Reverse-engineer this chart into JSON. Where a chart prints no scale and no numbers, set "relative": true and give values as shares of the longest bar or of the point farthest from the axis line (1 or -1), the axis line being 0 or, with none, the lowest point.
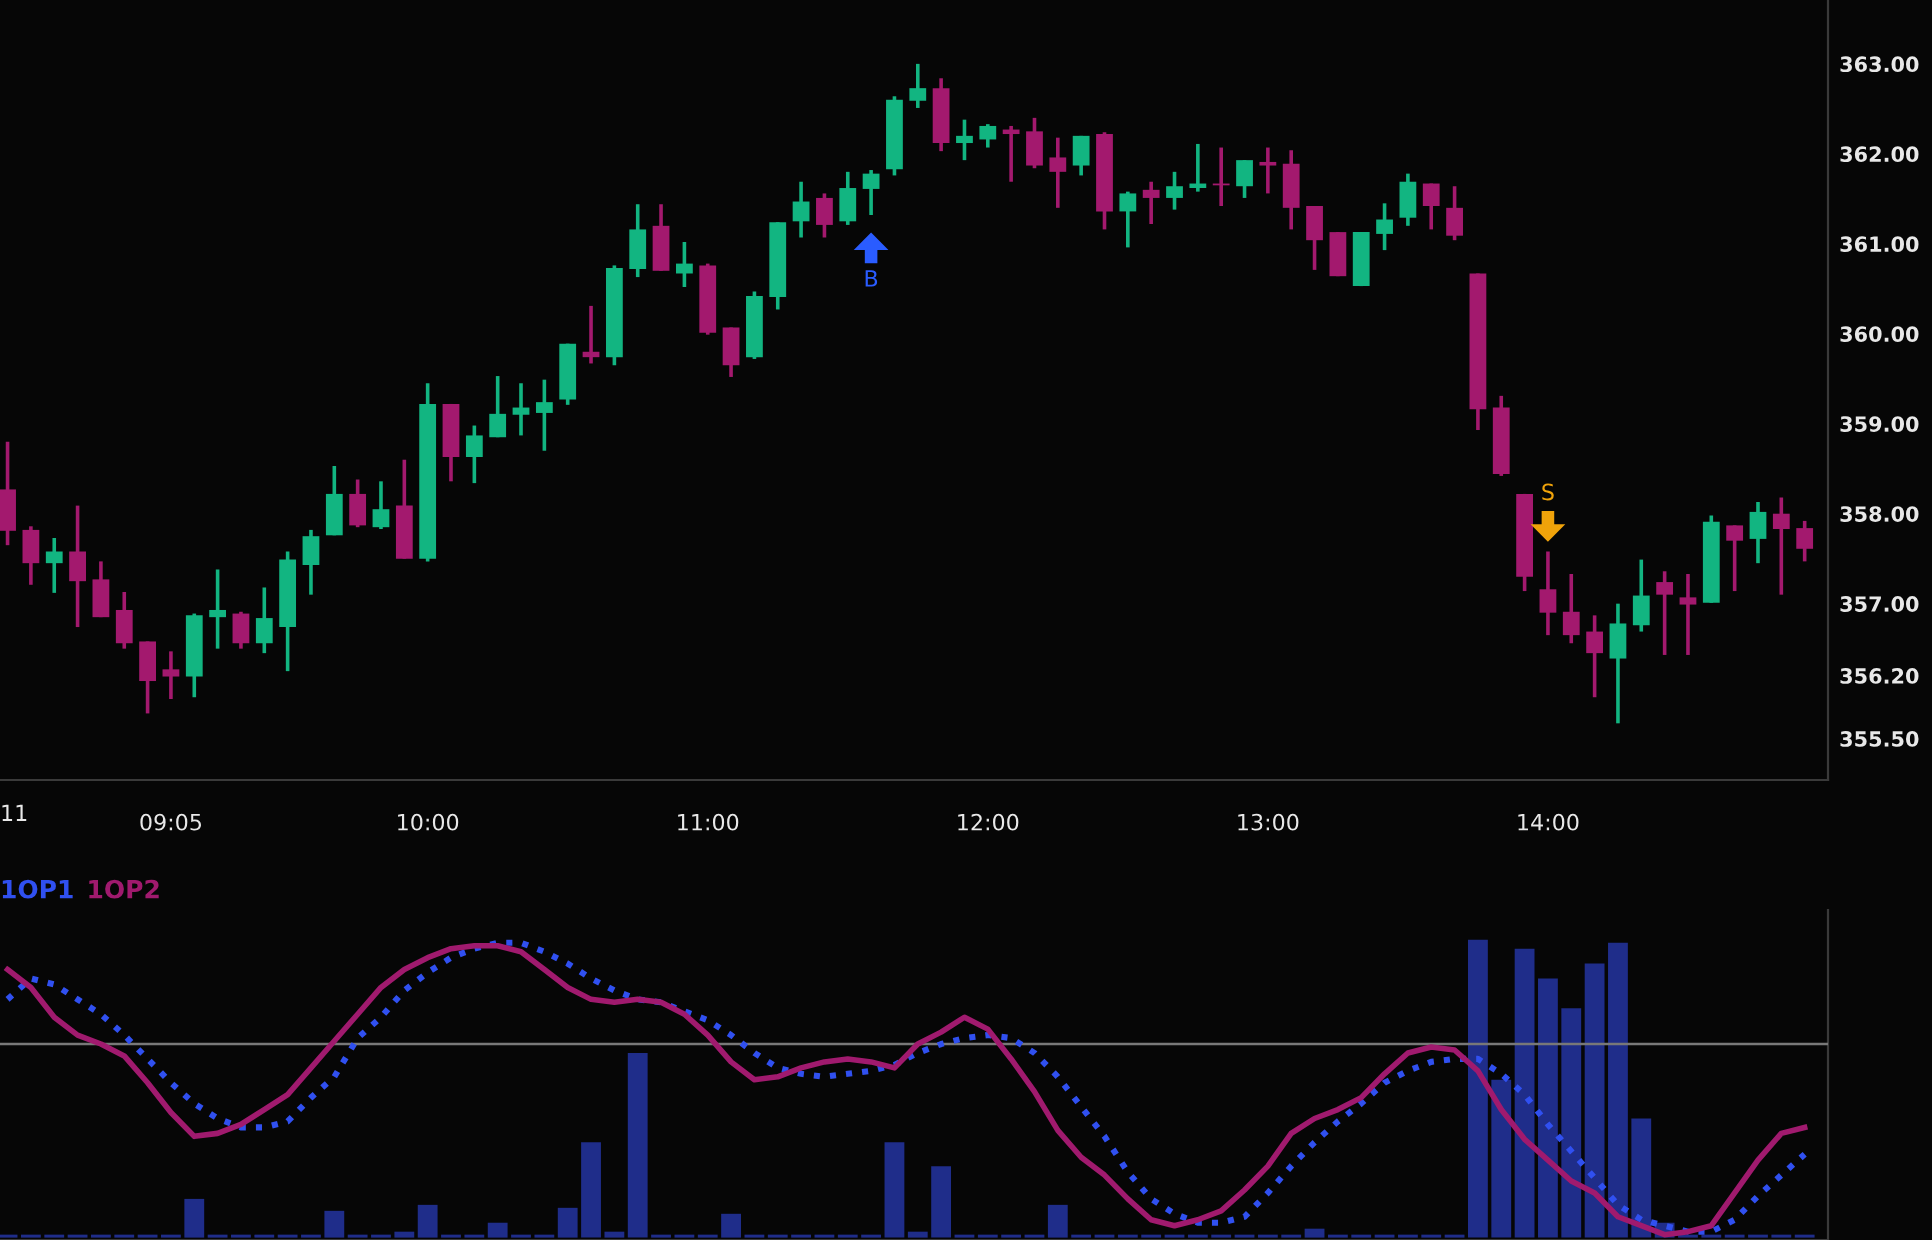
{
  "chart_data": [
    {
      "type": "candlestick",
      "x": [
        8.5,
        8.5833,
        8.6667,
        8.75,
        8.8333,
        8.9167,
        9.0,
        9.0833,
        9.1667,
        9.25,
        9.3333,
        9.4167,
        9.5,
        9.5833,
        9.6667,
        9.75,
        9.8333,
        9.9167,
        10.0,
        10.0833,
        10.1667,
        10.25,
        10.3333,
        10.4167,
        10.5,
        10.5833,
        10.6667,
        10.75,
        10.8333,
        10.9167,
        11.0,
        11.0833,
        11.1667,
        11.25,
        11.3333,
        11.4167,
        11.5,
        11.5833,
        11.6667,
        11.75,
        11.8333,
        11.9167,
        12.0,
        12.0833,
        12.1667,
        12.25,
        12.3333,
        12.4167,
        12.5,
        12.5833,
        12.6667,
        12.75,
        12.8333,
        12.9167,
        13.0,
        13.0833,
        13.1667,
        13.25,
        13.3333,
        13.4167,
        13.5,
        13.5833,
        13.6667,
        13.75,
        13.8333,
        13.9167,
        14.0,
        14.0833,
        14.1667,
        14.25,
        14.3333,
        14.4167,
        14.5,
        14.5833,
        14.6667,
        14.75,
        14.8333,
        14.9167
      ],
      "ohlc": [
        [
          358.27,
          358.8,
          357.65,
          357.81
        ],
        [
          357.82,
          357.86,
          357.21,
          357.45
        ],
        [
          357.45,
          357.73,
          357.12,
          357.58
        ],
        [
          357.58,
          358.09,
          356.74,
          357.25
        ],
        [
          357.27,
          357.47,
          356.85,
          356.85
        ],
        [
          356.93,
          357.13,
          356.5,
          356.56
        ],
        [
          356.58,
          356.58,
          355.78,
          356.14
        ],
        [
          356.27,
          356.47,
          355.94,
          356.19
        ],
        [
          356.19,
          356.89,
          355.96,
          356.87
        ],
        [
          356.85,
          357.38,
          356.5,
          356.93
        ],
        [
          356.89,
          356.91,
          356.5,
          356.56
        ],
        [
          356.56,
          357.18,
          356.45,
          356.84
        ],
        [
          356.74,
          357.58,
          356.25,
          357.49
        ],
        [
          357.43,
          357.82,
          357.1,
          357.75
        ],
        [
          357.76,
          358.53,
          357.76,
          358.22
        ],
        [
          358.22,
          358.38,
          357.85,
          357.87
        ],
        [
          357.85,
          358.36,
          357.83,
          358.05
        ],
        [
          358.09,
          358.6,
          357.5,
          357.5
        ],
        [
          357.5,
          359.45,
          357.47,
          359.22
        ],
        [
          359.22,
          359.22,
          358.36,
          358.63
        ],
        [
          358.63,
          358.98,
          358.34,
          358.87
        ],
        [
          358.85,
          359.53,
          358.85,
          359.11
        ],
        [
          359.1,
          359.45,
          358.87,
          359.18
        ],
        [
          359.12,
          359.49,
          358.7,
          359.24
        ],
        [
          359.27,
          359.89,
          359.21,
          359.89
        ],
        [
          359.8,
          360.31,
          359.67,
          359.74
        ],
        [
          359.74,
          360.76,
          359.65,
          360.73
        ],
        [
          360.72,
          361.44,
          360.63,
          361.16
        ],
        [
          361.2,
          361.44,
          360.7,
          360.7
        ],
        [
          360.67,
          361.02,
          360.52,
          360.78
        ],
        [
          360.76,
          360.78,
          359.99,
          360.01
        ],
        [
          360.07,
          360.07,
          359.52,
          359.65
        ],
        [
          359.74,
          360.47,
          359.72,
          360.42
        ],
        [
          360.41,
          361.24,
          360.27,
          361.24
        ],
        [
          361.25,
          361.69,
          361.07,
          361.47
        ],
        [
          361.51,
          361.56,
          361.07,
          361.21
        ],
        [
          361.25,
          361.8,
          361.21,
          361.62
        ],
        [
          361.61,
          361.82,
          361.32,
          361.78
        ],
        [
          361.83,
          362.64,
          361.76,
          362.6
        ],
        [
          362.59,
          363.0,
          362.51,
          362.73
        ],
        [
          362.73,
          362.84,
          362.03,
          362.12
        ],
        [
          362.12,
          362.38,
          361.93,
          362.2
        ],
        [
          362.16,
          362.33,
          362.07,
          362.31
        ],
        [
          362.27,
          362.31,
          361.69,
          362.22
        ],
        [
          362.25,
          362.4,
          361.84,
          361.87
        ],
        [
          361.96,
          362.18,
          361.4,
          361.8
        ],
        [
          361.87,
          362.2,
          361.76,
          362.2
        ],
        [
          362.22,
          362.24,
          361.16,
          361.36
        ],
        [
          361.36,
          361.58,
          360.96,
          361.56
        ],
        [
          361.6,
          361.69,
          361.22,
          361.51
        ],
        [
          361.51,
          361.8,
          361.38,
          361.64
        ],
        [
          361.62,
          362.11,
          361.58,
          361.67
        ],
        [
          361.67,
          362.07,
          361.42,
          361.65
        ],
        [
          361.64,
          361.93,
          361.51,
          361.93
        ],
        [
          361.91,
          362.07,
          361.56,
          361.87
        ],
        [
          361.89,
          362.04,
          361.16,
          361.4
        ],
        [
          361.42,
          361.42,
          360.71,
          361.04
        ],
        [
          361.13,
          361.13,
          360.64,
          360.64
        ],
        [
          360.53,
          361.13,
          360.53,
          361.13
        ],
        [
          361.11,
          361.45,
          360.93,
          361.27
        ],
        [
          361.29,
          361.78,
          361.2,
          361.69
        ],
        [
          361.67,
          361.67,
          361.16,
          361.42
        ],
        [
          361.4,
          361.64,
          361.04,
          361.09
        ],
        [
          360.67,
          360.67,
          358.93,
          359.16
        ],
        [
          359.18,
          359.31,
          358.42,
          358.44
        ],
        [
          358.22,
          358.22,
          357.14,
          357.3
        ],
        [
          357.16,
          357.58,
          356.65,
          356.9
        ],
        [
          356.91,
          357.33,
          356.56,
          356.65
        ],
        [
          356.69,
          356.87,
          355.96,
          356.45
        ],
        [
          356.39,
          357.0,
          355.67,
          356.78
        ],
        [
          356.76,
          357.49,
          356.69,
          357.09
        ],
        [
          357.24,
          357.36,
          356.43,
          357.1
        ],
        [
          357.07,
          357.33,
          356.43,
          356.99
        ],
        [
          357.01,
          357.98,
          357.01,
          357.91
        ],
        [
          357.87,
          357.87,
          357.14,
          357.7
        ],
        [
          357.72,
          358.13,
          357.45,
          358.02
        ],
        [
          358.0,
          358.18,
          357.1,
          357.83
        ],
        [
          357.84,
          357.92,
          357.47,
          357.61
        ]
      ],
      "colors": [
        "#a3196e",
        "#a3196e",
        "#12b581",
        "#a3196e",
        "#a3196e",
        "#a3196e",
        "#a3196e",
        "#a3196e",
        "#12b581",
        "#12b581",
        "#a3196e",
        "#12b581",
        "#12b581",
        "#12b581",
        "#12b581",
        "#a3196e",
        "#12b581",
        "#a3196e",
        "#12b581",
        "#a3196e",
        "#12b581",
        "#12b581",
        "#12b581",
        "#12b581",
        "#12b581",
        "#a3196e",
        "#12b581",
        "#12b581",
        "#a3196e",
        "#12b581",
        "#a3196e",
        "#a3196e",
        "#12b581",
        "#12b581",
        "#12b581",
        "#a3196e",
        "#12b581",
        "#12b581",
        "#12b581",
        "#12b581",
        "#a3196e",
        "#12b581",
        "#12b581",
        "#a3196e",
        "#a3196e",
        "#a3196e",
        "#12b581",
        "#a3196e",
        "#12b581",
        "#a3196e",
        "#12b581",
        "#12b581",
        "#a3196e",
        "#12b581",
        "#a3196e",
        "#a3196e",
        "#a3196e",
        "#a3196e",
        "#12b581",
        "#12b581",
        "#12b581",
        "#a3196e",
        "#a3196e",
        "#a3196e",
        "#a3196e",
        "#a3196e",
        "#a3196e",
        "#a3196e",
        "#a3196e",
        "#12b581",
        "#12b581",
        "#a3196e",
        "#a3196e",
        "#12b581",
        "#a3196e",
        "#12b581",
        "#a3196e",
        "#a3196e"
      ],
      "xlim": [
        8.473,
        15.0
      ],
      "xticks": [
        {
          "value": 9.0833,
          "label": "09:05"
        },
        {
          "value": 10,
          "label": "10:00"
        },
        {
          "value": 11,
          "label": "11:00"
        },
        {
          "value": 12,
          "label": "12:00"
        },
        {
          "value": 13,
          "label": "13:00"
        },
        {
          "value": 14,
          "label": "14:00"
        }
      ],
      "ylim": [
        355.04,
        363.71
      ],
      "yticks": [
        {
          "value": 363,
          "label": "363.00"
        },
        {
          "value": 362,
          "label": "362.00"
        },
        {
          "value": 361,
          "label": "361.00"
        },
        {
          "value": 360,
          "label": "360.00"
        },
        {
          "value": 359,
          "label": "359.00"
        },
        {
          "value": 358,
          "label": "358.00"
        },
        {
          "value": 357,
          "label": "357.00"
        },
        {
          "value": 356.2,
          "label": "356.20"
        },
        {
          "value": 355.5,
          "label": "355.50"
        }
      ],
      "annotations": [
        {
          "text": "B",
          "x": 11.5833,
          "y": 361.32
        },
        {
          "text": "S",
          "x": 14.0,
          "y": 357.58
        },
        "11"
      ],
      "grid": false
    },
    {
      "type": "bar",
      "relative": true,
      "x": [
        8.5,
        8.5833,
        8.6667,
        8.75,
        8.8333,
        8.9167,
        9.0,
        9.0833,
        9.1667,
        9.25,
        9.3333,
        9.4167,
        9.5,
        9.5833,
        9.6667,
        9.75,
        9.8333,
        9.9167,
        10.0,
        10.0833,
        10.1667,
        10.25,
        10.3333,
        10.4167,
        10.5,
        10.5833,
        10.6667,
        10.75,
        10.8333,
        10.9167,
        11.0,
        11.0833,
        11.1667,
        11.25,
        11.3333,
        11.4167,
        11.5,
        11.5833,
        11.6667,
        11.75,
        11.8333,
        11.9167,
        12.0,
        12.0833,
        12.1667,
        12.25,
        12.3333,
        12.4167,
        12.5,
        12.5833,
        12.6667,
        12.75,
        12.8333,
        12.9167,
        13.0,
        13.0833,
        13.1667,
        13.25,
        13.3333,
        13.4167,
        13.5,
        13.5833,
        13.6667,
        13.75,
        13.8333,
        13.9167,
        14.0,
        14.0833,
        14.1667,
        14.25,
        14.3333,
        14.4167,
        14.5,
        14.5833,
        14.6667,
        14.75,
        14.8333,
        14.9167
      ],
      "xlim": [
        8.473,
        15.0
      ],
      "legend": "top left",
      "grid": false,
      "ref_lines": [
        {
          "axis": "y",
          "value": 0.65,
          "color": "#787878"
        }
      ],
      "series": [
        {
          "type": "bar",
          "color": "#1f2d8a",
          "values": [
            0.01,
            0.01,
            0.01,
            0.01,
            0.01,
            0.01,
            0.01,
            0.01,
            0.13,
            0.01,
            0.01,
            0.01,
            0.01,
            0.01,
            0.09,
            0.01,
            0.01,
            0.02,
            0.11,
            0.01,
            0.01,
            0.05,
            0.01,
            0.01,
            0.1,
            0.32,
            0.02,
            0.62,
            0.01,
            0.01,
            0.01,
            0.08,
            0.01,
            0.01,
            0.01,
            0.01,
            0.01,
            0.01,
            0.32,
            0.02,
            0.24,
            0.01,
            0.01,
            0.01,
            0.01,
            0.11,
            0.01,
            0.01,
            0.01,
            0.01,
            0.01,
            0.01,
            0.01,
            0.01,
            0.01,
            0.01,
            0.03,
            0.01,
            0.01,
            0.01,
            0.01,
            0.01,
            0.01,
            1.0,
            0.53,
            0.97,
            0.87,
            0.77,
            0.92,
            0.99,
            0.4,
            0.05,
            0.01,
            0.01,
            0.01,
            0.01,
            0.01,
            0.01
          ]
        },
        {
          "type": "line",
          "name": "1OP1",
          "color": "#3050f0",
          "line_style": "dotted",
          "values": [
            0.8,
            0.87,
            0.85,
            0.8,
            0.75,
            0.68,
            0.6,
            0.52,
            0.45,
            0.4,
            0.37,
            0.37,
            0.39,
            0.47,
            0.54,
            0.67,
            0.74,
            0.83,
            0.89,
            0.94,
            0.97,
            0.99,
            0.99,
            0.96,
            0.92,
            0.87,
            0.83,
            0.8,
            0.79,
            0.76,
            0.73,
            0.68,
            0.62,
            0.57,
            0.55,
            0.54,
            0.55,
            0.56,
            0.58,
            0.62,
            0.65,
            0.67,
            0.68,
            0.67,
            0.62,
            0.54,
            0.44,
            0.34,
            0.22,
            0.13,
            0.08,
            0.05,
            0.05,
            0.07,
            0.15,
            0.24,
            0.32,
            0.39,
            0.45,
            0.52,
            0.56,
            0.59,
            0.6,
            0.6,
            0.55,
            0.48,
            0.38,
            0.29,
            0.2,
            0.11,
            0.06,
            0.04,
            0.02,
            0.02,
            0.06,
            0.14,
            0.21,
            0.28
          ]
        },
        {
          "type": "line",
          "name": "1OP2",
          "color": "#a01a6e",
          "line_style": "solid",
          "values": [
            0.9,
            0.84,
            0.74,
            0.68,
            0.65,
            0.61,
            0.52,
            0.42,
            0.34,
            0.35,
            0.38,
            0.43,
            0.48,
            0.57,
            0.66,
            0.75,
            0.84,
            0.9,
            0.94,
            0.97,
            0.98,
            0.98,
            0.96,
            0.9,
            0.84,
            0.8,
            0.79,
            0.8,
            0.79,
            0.75,
            0.68,
            0.59,
            0.53,
            0.54,
            0.57,
            0.59,
            0.6,
            0.59,
            0.57,
            0.65,
            0.69,
            0.74,
            0.7,
            0.6,
            0.49,
            0.36,
            0.27,
            0.21,
            0.13,
            0.06,
            0.04,
            0.06,
            0.09,
            0.16,
            0.24,
            0.35,
            0.4,
            0.43,
            0.47,
            0.55,
            0.62,
            0.64,
            0.63,
            0.56,
            0.43,
            0.33,
            0.26,
            0.19,
            0.15,
            0.07,
            0.04,
            0.01,
            0.02,
            0.04,
            0.15,
            0.26,
            0.35,
            0.37
          ]
        }
      ]
    }
  ]
}
